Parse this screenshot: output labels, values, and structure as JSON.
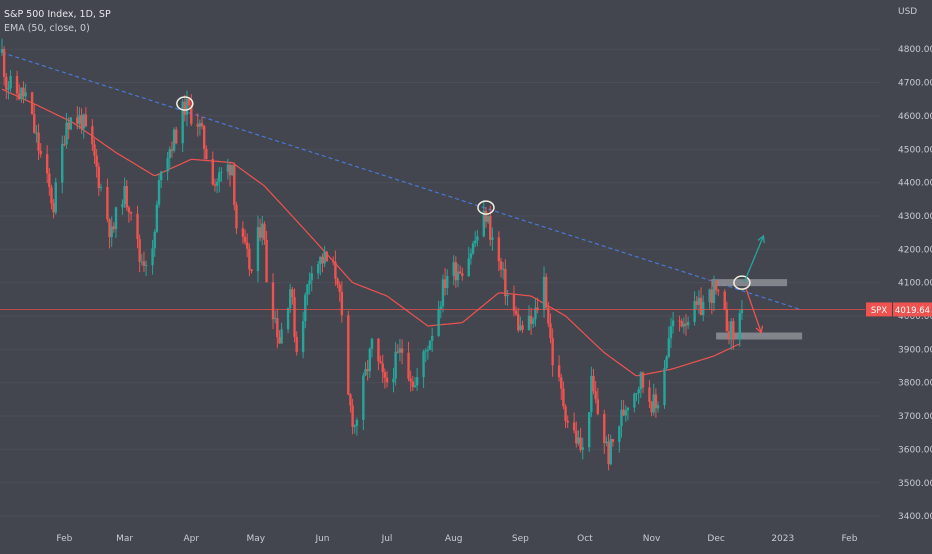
{
  "header": {
    "symbol_line": "S&P 500 Index, 1D, SP",
    "indicator_line": "EMA (50, close, 0)"
  },
  "price_axis": {
    "currency": "USD",
    "last_symbol": "SPX",
    "last_value": "4019.64"
  },
  "colors": {
    "background": "#43454f",
    "up": "#26a69a",
    "down": "#ef5350",
    "ema": "#ef5350",
    "trendline": "#4a78d6",
    "price_line": "#ef5350",
    "zone": "#8e9096",
    "arrow_up": "#26a69a",
    "arrow_down": "#ef5350",
    "axis_text": "#c9cbd1"
  },
  "chart_data": {
    "type": "candlestick",
    "title": "S&P 500 Index, 1D, SP",
    "ylim": [
      3350,
      4900
    ],
    "y_ticks": [
      3400,
      3500,
      3600,
      3700,
      3800,
      3900,
      4000,
      4100,
      4200,
      4300,
      4400,
      4500,
      4600,
      4700,
      4800
    ],
    "y_tick_labels": [
      "3400.00",
      "3500.00",
      "3600.00",
      "3700.00",
      "3800.00",
      "3900.00",
      "4000.00",
      "4100.00",
      "4200.00",
      "4300.00",
      "4400.00",
      "4500.00",
      "4600.00",
      "4700.00",
      "4800.00"
    ],
    "x_labels": [
      "Feb",
      "Mar",
      "Apr",
      "May",
      "Jun",
      "Jul",
      "Aug",
      "Sep",
      "Oct",
      "Nov",
      "Dec",
      "2023",
      "Feb"
    ],
    "last_price": 4019.64,
    "anchors": [
      [
        "2022-01-03",
        4790
      ],
      [
        "2022-01-05",
        4700
      ],
      [
        "2022-01-10",
        4670
      ],
      [
        "2022-01-14",
        4660
      ],
      [
        "2022-01-19",
        4530
      ],
      [
        "2022-01-24",
        4400
      ],
      [
        "2022-01-27",
        4330
      ],
      [
        "2022-02-02",
        4590
      ],
      [
        "2022-02-09",
        4590
      ],
      [
        "2022-02-15",
        4470
      ],
      [
        "2022-02-23",
        4240
      ],
      [
        "2022-02-28",
        4370
      ],
      [
        "2022-03-04",
        4330
      ],
      [
        "2022-03-08",
        4170
      ],
      [
        "2022-03-14",
        4180
      ],
      [
        "2022-03-18",
        4460
      ],
      [
        "2022-03-24",
        4530
      ],
      [
        "2022-03-29",
        4630
      ],
      [
        "2022-04-04",
        4585
      ],
      [
        "2022-04-08",
        4490
      ],
      [
        "2022-04-12",
        4400
      ],
      [
        "2022-04-20",
        4460
      ],
      [
        "2022-04-22",
        4270
      ],
      [
        "2022-04-29",
        4130
      ],
      [
        "2022-05-04",
        4300
      ],
      [
        "2022-05-06",
        4120
      ],
      [
        "2022-05-12",
        3930
      ],
      [
        "2022-05-17",
        4090
      ],
      [
        "2022-05-20",
        3900
      ],
      [
        "2022-05-27",
        4160
      ],
      [
        "2022-06-02",
        4170
      ],
      [
        "2022-06-08",
        4120
      ],
      [
        "2022-06-13",
        3750
      ],
      [
        "2022-06-16",
        3670
      ],
      [
        "2022-06-24",
        3910
      ],
      [
        "2022-06-30",
        3790
      ],
      [
        "2022-07-08",
        3900
      ],
      [
        "2022-07-14",
        3790
      ],
      [
        "2022-07-22",
        3960
      ],
      [
        "2022-07-29",
        4130
      ],
      [
        "2022-08-05",
        4150
      ],
      [
        "2022-08-10",
        4210
      ],
      [
        "2022-08-16",
        4305
      ],
      [
        "2022-08-19",
        4230
      ],
      [
        "2022-08-26",
        4060
      ],
      [
        "2022-09-01",
        3960
      ],
      [
        "2022-09-07",
        3980
      ],
      [
        "2022-09-12",
        4110
      ],
      [
        "2022-09-16",
        3870
      ],
      [
        "2022-09-23",
        3690
      ],
      [
        "2022-09-30",
        3590
      ],
      [
        "2022-10-04",
        3790
      ],
      [
        "2022-10-12",
        3580
      ],
      [
        "2022-10-17",
        3680
      ],
      [
        "2022-10-21",
        3750
      ],
      [
        "2022-10-27",
        3810
      ],
      [
        "2022-11-03",
        3720
      ],
      [
        "2022-11-10",
        3960
      ],
      [
        "2022-11-15",
        3990
      ],
      [
        "2022-11-23",
        4020
      ],
      [
        "2022-11-30",
        4080
      ],
      [
        "2022-12-05",
        3990
      ],
      [
        "2022-12-09",
        3940
      ],
      [
        "2022-12-13",
        4020
      ]
    ],
    "ema_50": [
      [
        "2022-01-03",
        4680
      ],
      [
        "2022-01-20",
        4630
      ],
      [
        "2022-02-05",
        4580
      ],
      [
        "2022-02-25",
        4490
      ],
      [
        "2022-03-15",
        4420
      ],
      [
        "2022-04-01",
        4470
      ],
      [
        "2022-04-20",
        4460
      ],
      [
        "2022-05-05",
        4390
      ],
      [
        "2022-05-25",
        4250
      ],
      [
        "2022-06-15",
        4100
      ],
      [
        "2022-07-01",
        4060
      ],
      [
        "2022-07-20",
        3970
      ],
      [
        "2022-08-05",
        3980
      ],
      [
        "2022-08-22",
        4070
      ],
      [
        "2022-09-06",
        4060
      ],
      [
        "2022-09-22",
        4000
      ],
      [
        "2022-10-10",
        3890
      ],
      [
        "2022-10-25",
        3820
      ],
      [
        "2022-11-10",
        3840
      ],
      [
        "2022-11-30",
        3880
      ],
      [
        "2022-12-13",
        3920
      ]
    ],
    "trendline": [
      [
        "2022-01-03",
        4790
      ],
      [
        "2023-01-09",
        4020
      ]
    ],
    "marked_highs": [
      [
        "2022-03-29",
        4637
      ],
      [
        "2022-08-16",
        4325
      ],
      [
        "2022-12-13",
        4100
      ]
    ],
    "zones": [
      {
        "start": "2022-11-29",
        "end": "2023-01-03",
        "value": 4100
      },
      {
        "start": "2022-12-01",
        "end": "2023-01-10",
        "value": 3940
      }
    ],
    "arrows": [
      {
        "direction": "up",
        "from": [
          "2022-12-14",
          4100
        ],
        "to": [
          "2022-12-23",
          4240
        ]
      },
      {
        "direction": "down",
        "from": [
          "2022-12-15",
          4080
        ],
        "to": [
          "2022-12-22",
          3950
        ]
      }
    ]
  }
}
